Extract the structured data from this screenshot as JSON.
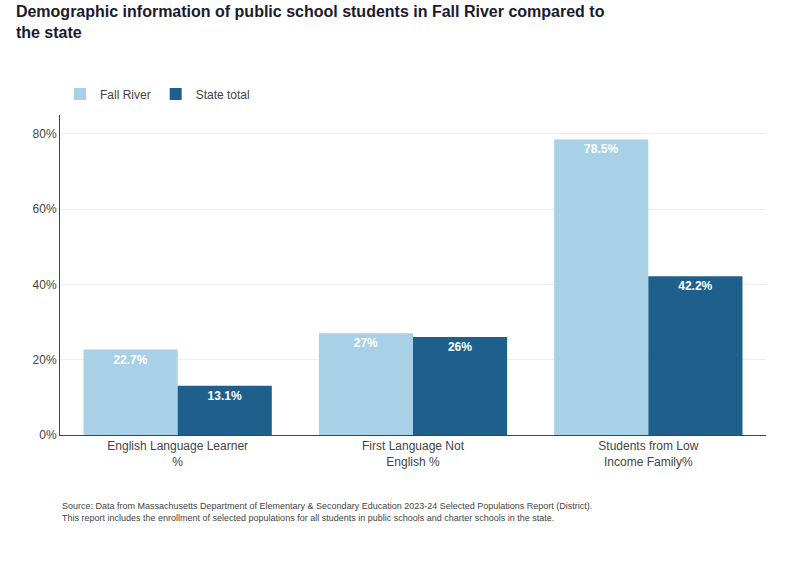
{
  "chart_data": {
    "type": "bar",
    "title": "Demographic information of public school students in Fall River compared to\nthe state",
    "categories": [
      "English Language Learner\n%",
      "First Language Not\nEnglish %",
      "Students from Low\nIncome Family%"
    ],
    "series": [
      {
        "name": "Fall River",
        "color": "#a8d0e6",
        "values": [
          22.7,
          27.0,
          78.5
        ],
        "value_labels": [
          "22.7%",
          "27%",
          "78.5%"
        ]
      },
      {
        "name": "State total",
        "color": "#1f5f8b",
        "values": [
          13.1,
          26.0,
          42.2
        ],
        "value_labels": [
          "13.1%",
          "26%",
          "42.2%"
        ]
      }
    ],
    "ylim": [
      0,
      85
    ],
    "yticks": [
      {
        "value": 0,
        "label": "0%"
      },
      {
        "value": 20,
        "label": "20%"
      },
      {
        "value": 40,
        "label": "40%"
      },
      {
        "value": 60,
        "label": "60%"
      },
      {
        "value": 80,
        "label": "80%"
      }
    ],
    "grid": true,
    "legend": "upper left",
    "data_labels": true,
    "annotations": [
      "Source: Data from Massachusetts Department of Elementary & Secondary Education 2023-24 Selected Populations Report (District).\nThis report includes the enrollment of selected populations for all students in public schools and charter schools in the state."
    ]
  }
}
